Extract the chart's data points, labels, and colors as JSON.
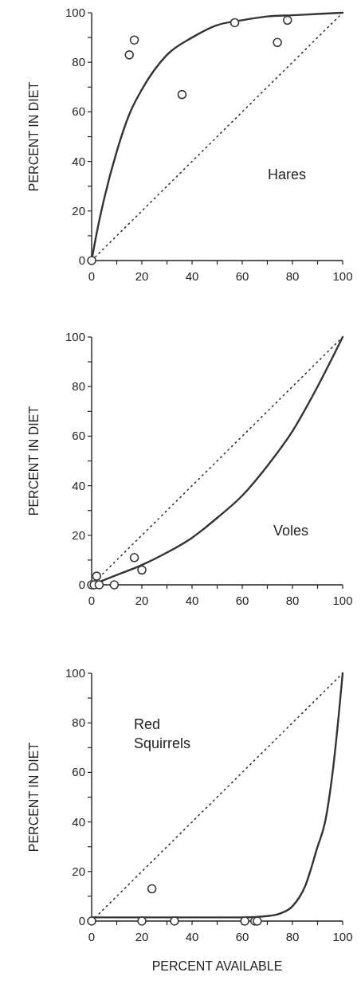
{
  "chart_data": [
    {
      "type": "scatter",
      "ylabel": "PERCENT IN DIET",
      "annotations": [
        "Hares"
      ],
      "xlim": [
        0,
        100
      ],
      "ylim": [
        0,
        100
      ],
      "xticks": [
        0,
        {
          "value": 10,
          "label": null
        },
        20,
        {
          "value": 30,
          "label": null
        },
        40,
        {
          "value": 50,
          "label": null
        },
        60,
        {
          "value": 70,
          "label": null
        },
        80,
        {
          "value": 90,
          "label": null
        },
        100
      ],
      "yticks": [
        0,
        {
          "value": 10,
          "label": null
        },
        20,
        {
          "value": 30,
          "label": null
        },
        40,
        {
          "value": 50,
          "label": null
        },
        60,
        {
          "value": 70,
          "label": null
        },
        80,
        {
          "value": 90,
          "label": null
        },
        100
      ],
      "grid": false,
      "series": [
        {
          "type": "line",
          "color": "#333333",
          "line_style": "solid",
          "x": [
            0,
            2,
            5,
            10,
            15,
            20,
            30,
            40,
            50,
            60,
            70,
            80,
            90,
            100
          ],
          "values": [
            0,
            11,
            25,
            44,
            59,
            69,
            83,
            90,
            95,
            97,
            98.5,
            99,
            99.5,
            100
          ]
        },
        {
          "type": "line",
          "color": "#333333",
          "line_style": "dotted",
          "x": [
            0,
            100
          ],
          "values": [
            0,
            100
          ]
        },
        {
          "color": "#333333",
          "marker": "circle",
          "x": [
            0,
            15,
            17,
            36,
            57,
            74,
            78
          ],
          "values": [
            0,
            83,
            89,
            67,
            96,
            88,
            97
          ]
        }
      ]
    },
    {
      "type": "scatter",
      "ylabel": "PERCENT IN DIET",
      "annotations": [
        "Voles"
      ],
      "xlim": [
        0,
        100
      ],
      "ylim": [
        0,
        100
      ],
      "xticks": [
        0,
        {
          "value": 10,
          "label": null
        },
        20,
        {
          "value": 30,
          "label": null
        },
        40,
        {
          "value": 50,
          "label": null
        },
        60,
        {
          "value": 70,
          "label": null
        },
        80,
        {
          "value": 90,
          "label": null
        },
        100
      ],
      "yticks": [
        0,
        {
          "value": 10,
          "label": null
        },
        20,
        {
          "value": 30,
          "label": null
        },
        40,
        {
          "value": 50,
          "label": null
        },
        60,
        {
          "value": 70,
          "label": null
        },
        80,
        {
          "value": 90,
          "label": null
        },
        100
      ],
      "grid": false,
      "series": [
        {
          "type": "line",
          "color": "#333333",
          "line_style": "solid",
          "x": [
            0,
            10,
            20,
            30,
            40,
            50,
            60,
            70,
            80,
            90,
            100
          ],
          "values": [
            0,
            4,
            8,
            13,
            19,
            27,
            36,
            48,
            62,
            80,
            100
          ]
        },
        {
          "type": "line",
          "color": "#333333",
          "line_style": "dotted",
          "x": [
            0,
            100
          ],
          "values": [
            0,
            100
          ]
        },
        {
          "color": "#333333",
          "marker": "circle",
          "x": [
            0,
            1,
            2,
            3,
            9,
            17,
            20
          ],
          "values": [
            0,
            0,
            3.5,
            0,
            0,
            11,
            6
          ]
        }
      ]
    },
    {
      "type": "scatter",
      "xlabel": "PERCENT AVAILABLE",
      "ylabel": "PERCENT IN DIET",
      "annotations": [
        "Red Squirrels"
      ],
      "xlim": [
        0,
        100
      ],
      "ylim": [
        0,
        100
      ],
      "xticks": [
        0,
        {
          "value": 10,
          "label": null
        },
        20,
        {
          "value": 30,
          "label": null
        },
        40,
        {
          "value": 50,
          "label": null
        },
        60,
        {
          "value": 70,
          "label": null
        },
        80,
        {
          "value": 90,
          "label": null
        },
        100
      ],
      "yticks": [
        0,
        {
          "value": 10,
          "label": null
        },
        20,
        {
          "value": 30,
          "label": null
        },
        40,
        {
          "value": 50,
          "label": null
        },
        60,
        {
          "value": 70,
          "label": null
        },
        80,
        {
          "value": 90,
          "label": null
        },
        100
      ],
      "grid": false,
      "series": [
        {
          "type": "line",
          "color": "#333333",
          "line_style": "solid",
          "x": [
            0,
            20,
            40,
            60,
            70,
            75,
            80,
            85,
            90,
            93,
            96,
            100
          ],
          "values": [
            1.5,
            1.5,
            1.5,
            1.5,
            2,
            3,
            6,
            14,
            30,
            40,
            60,
            100
          ]
        },
        {
          "type": "line",
          "color": "#333333",
          "line_style": "dotted",
          "x": [
            0,
            100
          ],
          "values": [
            0,
            100
          ]
        },
        {
          "color": "#333333",
          "marker": "circle",
          "x": [
            0,
            20,
            24,
            33,
            61,
            65,
            66
          ],
          "values": [
            0,
            0,
            13,
            0,
            0,
            0,
            0
          ]
        }
      ]
    }
  ]
}
